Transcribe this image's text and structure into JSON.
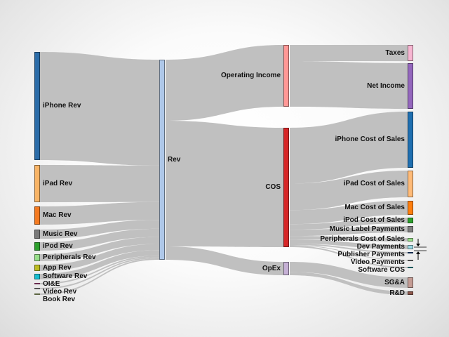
{
  "diagram": {
    "type": "sankey",
    "nodes": {
      "iphone_rev": {
        "label": "iPhone Rev",
        "color": "#2b6ca8"
      },
      "ipad_rev": {
        "label": "iPad Rev",
        "color": "#f8b466"
      },
      "mac_rev": {
        "label": "Mac Rev",
        "color": "#f47a20"
      },
      "music_rev": {
        "label": "Music Rev",
        "color": "#7a7a7a"
      },
      "ipod_rev": {
        "label": "iPod Rev",
        "color": "#2ca02c"
      },
      "peripherals_rev": {
        "label": "Peripherals Rev",
        "color": "#98df8a"
      },
      "app_rev": {
        "label": "App Rev",
        "color": "#bcbd22"
      },
      "software_rev": {
        "label": "Software Rev",
        "color": "#17becf"
      },
      "oie": {
        "label": "OI&E",
        "color": "#c05090"
      },
      "video_rev": {
        "label": "Video Rev",
        "color": "#999999"
      },
      "book_rev": {
        "label": "Book Rev",
        "color": "#a8b878"
      },
      "rev": {
        "label": "Rev",
        "color": "#aec7e8"
      },
      "operating_income": {
        "label": "Operating Income",
        "color": "#ff9896"
      },
      "cos": {
        "label": "COS",
        "color": "#d62728"
      },
      "opex": {
        "label": "OpEx",
        "color": "#c5b0d5"
      },
      "taxes": {
        "label": "Taxes",
        "color": "#f7b6d2"
      },
      "net_income": {
        "label": "Net Income",
        "color": "#9467bd"
      },
      "iphone_cos": {
        "label": "iPhone Cost of Sales",
        "color": "#1f6fb0"
      },
      "ipad_cos": {
        "label": "iPad Cost of Sales",
        "color": "#ffbb78"
      },
      "mac_cos": {
        "label": "Mac Cost of Sales",
        "color": "#ff7f0e"
      },
      "ipod_cos": {
        "label": "iPod Cost of Sales",
        "color": "#2ca02c"
      },
      "music_label": {
        "label": "Music Label Payments",
        "color": "#7f7f7f"
      },
      "peripherals_cos": {
        "label": "Peripherals Cost of Sales",
        "color": "#98df8a"
      },
      "dev_payments": {
        "label": "Dev Payments",
        "color": "#9edae5"
      },
      "publisher_payments": {
        "label": "Publisher Payments",
        "color": "#1f4e8c"
      },
      "video_payments": {
        "label": "Video Payments",
        "color": "#888888"
      },
      "software_cos": {
        "label": "Software COS",
        "color": "#17a0a8"
      },
      "sga": {
        "label": "SG&A",
        "color": "#c49c94"
      },
      "rd": {
        "label": "R&D",
        "color": "#8c564b"
      }
    },
    "link_color": "#bdbdbd"
  }
}
